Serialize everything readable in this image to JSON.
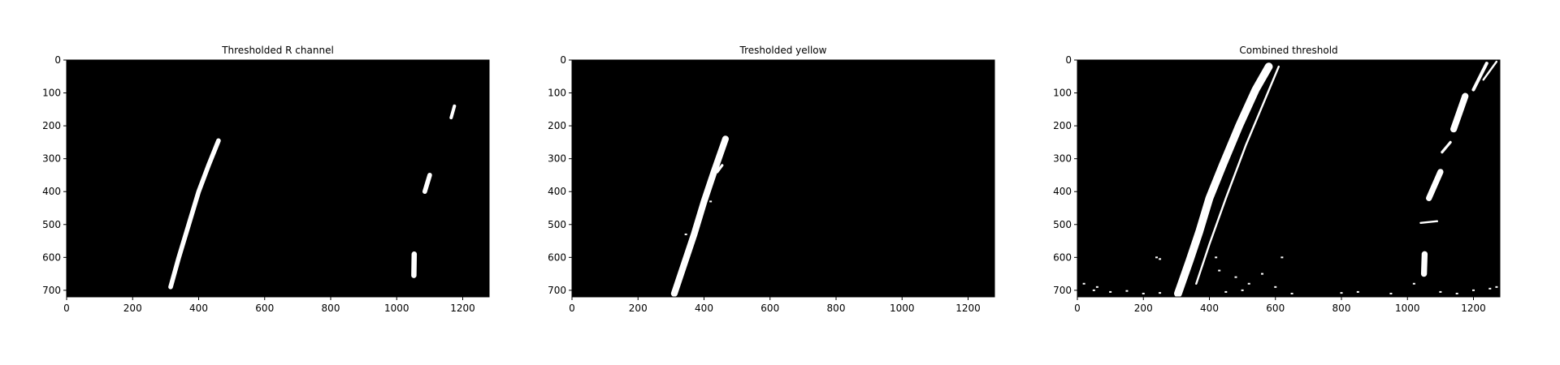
{
  "colors": {
    "background": "#000000",
    "foreground": "#ffffff"
  },
  "chart_data": [
    {
      "type": "image",
      "title": "Thresholded R channel",
      "xlim": [
        0,
        1280
      ],
      "ylim": [
        720,
        0
      ],
      "xticks": [
        0,
        200,
        400,
        600,
        800,
        1000,
        1200
      ],
      "yticks": [
        0,
        100,
        200,
        300,
        400,
        500,
        600,
        700
      ],
      "features": [
        {
          "kind": "line",
          "points": [
            [
              315,
              690
            ],
            [
              340,
              600
            ],
            [
              370,
              500
            ],
            [
              400,
              400
            ],
            [
              430,
              320
            ],
            [
              460,
              245
            ]
          ],
          "width": 14
        },
        {
          "kind": "line",
          "points": [
            [
              1165,
              175
            ],
            [
              1175,
              140
            ]
          ],
          "width": 10
        },
        {
          "kind": "line",
          "points": [
            [
              1085,
              400
            ],
            [
              1100,
              350
            ]
          ],
          "width": 14
        },
        {
          "kind": "line",
          "points": [
            [
              1052,
              655
            ],
            [
              1053,
              590
            ]
          ],
          "width": 16
        }
      ]
    },
    {
      "type": "image",
      "title": "Tresholded yellow",
      "xlim": [
        0,
        1280
      ],
      "ylim": [
        720,
        0
      ],
      "xticks": [
        0,
        200,
        400,
        600,
        800,
        1000,
        1200
      ],
      "yticks": [
        0,
        100,
        200,
        300,
        400,
        500,
        600,
        700
      ],
      "features": [
        {
          "kind": "line",
          "points": [
            [
              310,
              710
            ],
            [
              340,
              620
            ],
            [
              370,
              530
            ],
            [
              400,
              430
            ],
            [
              430,
              340
            ],
            [
              465,
              240
            ]
          ],
          "width": 20
        },
        {
          "kind": "line",
          "points": [
            [
              440,
              340
            ],
            [
              455,
              320
            ]
          ],
          "width": 8
        },
        {
          "kind": "dot",
          "points": [
            [
              410,
              420
            ],
            [
              420,
              430
            ],
            [
              345,
              530
            ],
            [
              360,
              560
            ]
          ]
        }
      ]
    },
    {
      "type": "image",
      "title": "Combined threshold",
      "xlim": [
        0,
        1280
      ],
      "ylim": [
        720,
        0
      ],
      "xticks": [
        0,
        200,
        400,
        600,
        800,
        1000,
        1200
      ],
      "yticks": [
        0,
        100,
        200,
        300,
        400,
        500,
        600,
        700
      ],
      "features": [
        {
          "kind": "line",
          "points": [
            [
              305,
              710
            ],
            [
              340,
              610
            ],
            [
              370,
              520
            ],
            [
              400,
              420
            ],
            [
              440,
              320
            ],
            [
              490,
              200
            ],
            [
              540,
              90
            ],
            [
              580,
              20
            ]
          ],
          "width": 24
        },
        {
          "kind": "line",
          "points": [
            [
              360,
              680
            ],
            [
              400,
              560
            ],
            [
              450,
              420
            ],
            [
              510,
              260
            ],
            [
              560,
              140
            ],
            [
              610,
              20
            ]
          ],
          "width": 6
        },
        {
          "kind": "line",
          "points": [
            [
              1050,
              650
            ],
            [
              1052,
              590
            ]
          ],
          "width": 18
        },
        {
          "kind": "line",
          "points": [
            [
              1065,
              420
            ],
            [
              1100,
              340
            ]
          ],
          "width": 18
        },
        {
          "kind": "line",
          "points": [
            [
              1105,
              280
            ],
            [
              1130,
              250
            ]
          ],
          "width": 8
        },
        {
          "kind": "line",
          "points": [
            [
              1140,
              210
            ],
            [
              1175,
              110
            ]
          ],
          "width": 20
        },
        {
          "kind": "line",
          "points": [
            [
              1200,
              90
            ],
            [
              1240,
              10
            ]
          ],
          "width": 10
        },
        {
          "kind": "line",
          "points": [
            [
              1230,
              60
            ],
            [
              1270,
              5
            ]
          ],
          "width": 6
        },
        {
          "kind": "line",
          "points": [
            [
              1040,
              495
            ],
            [
              1090,
              490
            ]
          ],
          "width": 6
        },
        {
          "kind": "dot",
          "points": [
            [
              240,
              600
            ],
            [
              250,
              605
            ],
            [
              50,
              700
            ],
            [
              100,
              705
            ],
            [
              150,
              702
            ],
            [
              200,
              710
            ],
            [
              250,
              708
            ],
            [
              450,
              705
            ],
            [
              500,
              700
            ],
            [
              600,
              690
            ],
            [
              650,
              710
            ],
            [
              800,
              708
            ],
            [
              850,
              705
            ],
            [
              950,
              710
            ],
            [
              1100,
              705
            ],
            [
              1150,
              710
            ],
            [
              1200,
              700
            ],
            [
              1250,
              695
            ],
            [
              1270,
              690
            ],
            [
              20,
              680
            ],
            [
              60,
              690
            ],
            [
              420,
              600
            ],
            [
              430,
              640
            ],
            [
              480,
              660
            ],
            [
              520,
              680
            ],
            [
              560,
              650
            ],
            [
              620,
              600
            ],
            [
              1020,
              680
            ]
          ]
        }
      ]
    }
  ]
}
